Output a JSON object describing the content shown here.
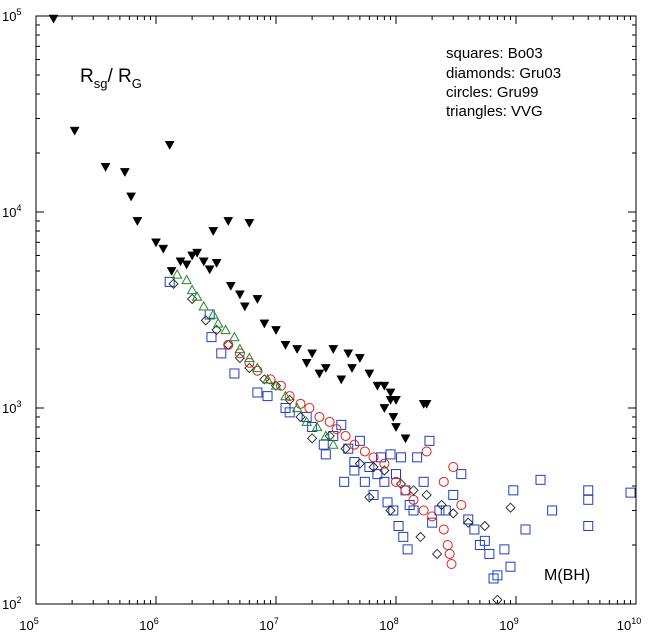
{
  "chart_data": {
    "type": "scatter",
    "title": "",
    "xlabel": "M(BH)",
    "ylabel": {
      "main1": "R",
      "sub1": "sg",
      "slash": "/ ",
      "main2": "R",
      "sub2": "G"
    },
    "xscale": "log",
    "yscale": "log",
    "xlim": [
      100000,
      10000000000
    ],
    "ylim": [
      100,
      100000
    ],
    "x_ticks": [
      {
        "base": "10",
        "exp": "5"
      },
      {
        "base": "10",
        "exp": "6"
      },
      {
        "base": "10",
        "exp": "7"
      },
      {
        "base": "10",
        "exp": "8"
      },
      {
        "base": "10",
        "exp": "9"
      },
      {
        "base": "10",
        "exp": "10"
      }
    ],
    "y_ticks": [
      {
        "base": "10",
        "exp": "2"
      },
      {
        "base": "10",
        "exp": "3"
      },
      {
        "base": "10",
        "exp": "4"
      },
      {
        "base": "10",
        "exp": "5"
      }
    ],
    "grid": false,
    "legend_position": "top-right",
    "legend_lines": [
      "squares: Bo03",
      "diamonds: Gru03",
      "circles: Gru99",
      "triangles: VVG"
    ],
    "series": [
      {
        "name": "squares: Bo03",
        "marker": "square",
        "color": "#1f3fbf",
        "points": [
          [
            1300000,
            4400
          ],
          [
            2800000,
            3000
          ],
          [
            2900000,
            2300
          ],
          [
            3500000,
            1900
          ],
          [
            4500000,
            1500
          ],
          [
            7000000,
            1200
          ],
          [
            8500000,
            1150
          ],
          [
            12000000.0,
            1000
          ],
          [
            13000000.0,
            950
          ],
          [
            18000000.0,
            900
          ],
          [
            20000000.0,
            800
          ],
          [
            25000000.0,
            650
          ],
          [
            26000000.0,
            580
          ],
          [
            30000000.0,
            720
          ],
          [
            35000000.0,
            820
          ],
          [
            40000000.0,
            620
          ],
          [
            45000000.0,
            530
          ],
          [
            50000000.0,
            680
          ],
          [
            60000000.0,
            500
          ],
          [
            70000000.0,
            460
          ],
          [
            80000000.0,
            420
          ],
          [
            90000000.0,
            580
          ],
          [
            100000000.0,
            460
          ],
          [
            110000000.0,
            560
          ],
          [
            120000000.0,
            380
          ],
          [
            130000000.0,
            320
          ],
          [
            140000000.0,
            300
          ],
          [
            150000000.0,
            560
          ],
          [
            170000000.0,
            420
          ],
          [
            190000000.0,
            680
          ],
          [
            200000000.0,
            260
          ],
          [
            230000000.0,
            300
          ],
          [
            260000000.0,
            300
          ],
          [
            300000000.0,
            360
          ],
          [
            350000000.0,
            460
          ],
          [
            400000000.0,
            270
          ],
          [
            450000000.0,
            240
          ],
          [
            500000000.0,
            200
          ],
          [
            550000000.0,
            210
          ],
          [
            600000000.0,
            180
          ],
          [
            650000000.0,
            135
          ],
          [
            700000000.0,
            140
          ],
          [
            800000000.0,
            190
          ],
          [
            900000000.0,
            155
          ],
          [
            950000000.0,
            380
          ],
          [
            1200000000.0,
            240
          ],
          [
            1600000000.0,
            430
          ],
          [
            2000000000.0,
            300
          ],
          [
            4000000000.0,
            380
          ],
          [
            4000000000.0,
            340
          ],
          [
            4000000000.0,
            250
          ],
          [
            9000000000.0,
            370
          ],
          [
            37000000.0,
            420
          ],
          [
            45000000.0,
            480
          ],
          [
            55000000.0,
            420
          ],
          [
            65000000.0,
            360
          ],
          [
            75000000.0,
            560
          ],
          [
            85000000.0,
            330
          ],
          [
            95000000.0,
            300
          ],
          [
            105000000.0,
            250
          ],
          [
            115000000.0,
            220
          ],
          [
            125000000.0,
            190
          ]
        ]
      },
      {
        "name": "diamonds: Gru03",
        "marker": "diamond",
        "color": "#222222",
        "points": [
          [
            1400000,
            4300
          ],
          [
            2000000,
            3600
          ],
          [
            2600000,
            2800
          ],
          [
            3200000,
            2500
          ],
          [
            4000000,
            2100
          ],
          [
            5000000,
            1800
          ],
          [
            6000000,
            1600
          ],
          [
            8000000,
            1400
          ],
          [
            10000000.0,
            1300
          ],
          [
            13000000.0,
            1100
          ],
          [
            16000000.0,
            900
          ],
          [
            20000000.0,
            700
          ],
          [
            28000000.0,
            720
          ],
          [
            38000000.0,
            620
          ],
          [
            50000000.0,
            520
          ],
          [
            65000000.0,
            500
          ],
          [
            80000000.0,
            480
          ],
          [
            110000000.0,
            410
          ],
          [
            140000000.0,
            380
          ],
          [
            180000000.0,
            360
          ],
          [
            240000000.0,
            320
          ],
          [
            300000000.0,
            290
          ],
          [
            400000000.0,
            260
          ],
          [
            550000000.0,
            250
          ],
          [
            700000000.0,
            105
          ],
          [
            900000000.0,
            310
          ],
          [
            220000000.0,
            180
          ],
          [
            160000000.0,
            220
          ],
          [
            90000000.0,
            300
          ],
          [
            60000000.0,
            350
          ]
        ]
      },
      {
        "name": "circles: Gru99",
        "marker": "circle",
        "color": "#e0201a",
        "points": [
          [
            4000000,
            2100
          ],
          [
            5000000,
            1900
          ],
          [
            6000000,
            1700
          ],
          [
            7000000,
            1550
          ],
          [
            9000000,
            1400
          ],
          [
            11000000.0,
            1300
          ],
          [
            13000000.0,
            1150
          ],
          [
            16000000.0,
            1050
          ],
          [
            19000000.0,
            1000
          ],
          [
            23000000.0,
            900
          ],
          [
            28000000.0,
            850
          ],
          [
            32000000.0,
            780
          ],
          [
            38000000.0,
            720
          ],
          [
            45000000.0,
            650
          ],
          [
            55000000.0,
            600
          ],
          [
            65000000.0,
            560
          ],
          [
            80000000.0,
            520
          ],
          [
            100000000.0,
            420
          ],
          [
            120000000.0,
            380
          ],
          [
            140000000.0,
            340
          ],
          [
            170000000.0,
            300
          ],
          [
            200000000.0,
            280
          ],
          [
            250000000.0,
            240
          ],
          [
            270000000.0,
            200
          ],
          [
            280000000.0,
            180
          ],
          [
            290000000.0,
            160
          ],
          [
            300000000.0,
            500
          ],
          [
            250000000.0,
            420
          ],
          [
            180000000.0,
            600
          ],
          [
            350000000.0,
            320
          ]
        ]
      },
      {
        "name": "triangles: VVG",
        "marker": "triangle-up",
        "color": "#1f8a2a",
        "points": [
          [
            1500000,
            4800
          ],
          [
            1800000,
            4500
          ],
          [
            2000000,
            4000
          ],
          [
            2200000,
            3700
          ],
          [
            2500000,
            3300
          ],
          [
            3000000,
            3000
          ],
          [
            3300000,
            2700
          ],
          [
            3800000,
            2500
          ],
          [
            4500000,
            2300
          ],
          [
            5000000,
            2000
          ],
          [
            6000000,
            1800
          ],
          [
            7000000,
            1600
          ],
          [
            8500000,
            1400
          ],
          [
            10000000.0,
            1300
          ],
          [
            12000000.0,
            1150
          ],
          [
            15000000.0,
            1000
          ],
          [
            18000000.0,
            850
          ],
          [
            22000000.0,
            800
          ],
          [
            26000000.0,
            720
          ],
          [
            30000000.0,
            650
          ]
        ]
      },
      {
        "name": "",
        "marker": "triangle-down",
        "color": "#000000",
        "points": [
          [
            140000,
            97000
          ],
          [
            210000,
            26000
          ],
          [
            380000,
            17000
          ],
          [
            550000,
            16000
          ],
          [
            620000,
            12000
          ],
          [
            700000,
            9000
          ],
          [
            1300000,
            22000
          ],
          [
            1000000,
            7000
          ],
          [
            1150000,
            6500
          ],
          [
            1350000,
            5000
          ],
          [
            1600000,
            5600
          ],
          [
            1800000,
            5400
          ],
          [
            2000000,
            6000
          ],
          [
            2200000,
            6200
          ],
          [
            2500000,
            5600
          ],
          [
            2800000,
            5100
          ],
          [
            3200000,
            5500
          ],
          [
            3000000,
            8000
          ],
          [
            4000000,
            9000
          ],
          [
            4200000,
            4200
          ],
          [
            5000000,
            3800
          ],
          [
            5500000,
            3300
          ],
          [
            6000000,
            8800
          ],
          [
            7000000,
            3600
          ],
          [
            8000000,
            2700
          ],
          [
            10000000.0,
            2500
          ],
          [
            12000000.0,
            2100
          ],
          [
            15000000.0,
            2000
          ],
          [
            18000000.0,
            1700
          ],
          [
            20000000.0,
            1900
          ],
          [
            23000000.0,
            1500
          ],
          [
            26000000.0,
            1600
          ],
          [
            30000000.0,
            2000
          ],
          [
            35000000.0,
            1400
          ],
          [
            40000000.0,
            1900
          ],
          [
            43000000.0,
            1600
          ],
          [
            50000000.0,
            1800
          ],
          [
            60000000.0,
            1500
          ],
          [
            70000000.0,
            1300
          ],
          [
            80000000.0,
            1300
          ],
          [
            90000000.0,
            1200
          ],
          [
            100000000.0,
            1100
          ],
          [
            170000000.0,
            1050
          ],
          [
            180000000.0,
            1050
          ],
          [
            95000000.0,
            900
          ],
          [
            100000000.0,
            800
          ],
          [
            120000000.0,
            700
          ],
          [
            90000000.0,
            1100
          ],
          [
            80000000.0,
            1000
          ]
        ]
      }
    ]
  }
}
